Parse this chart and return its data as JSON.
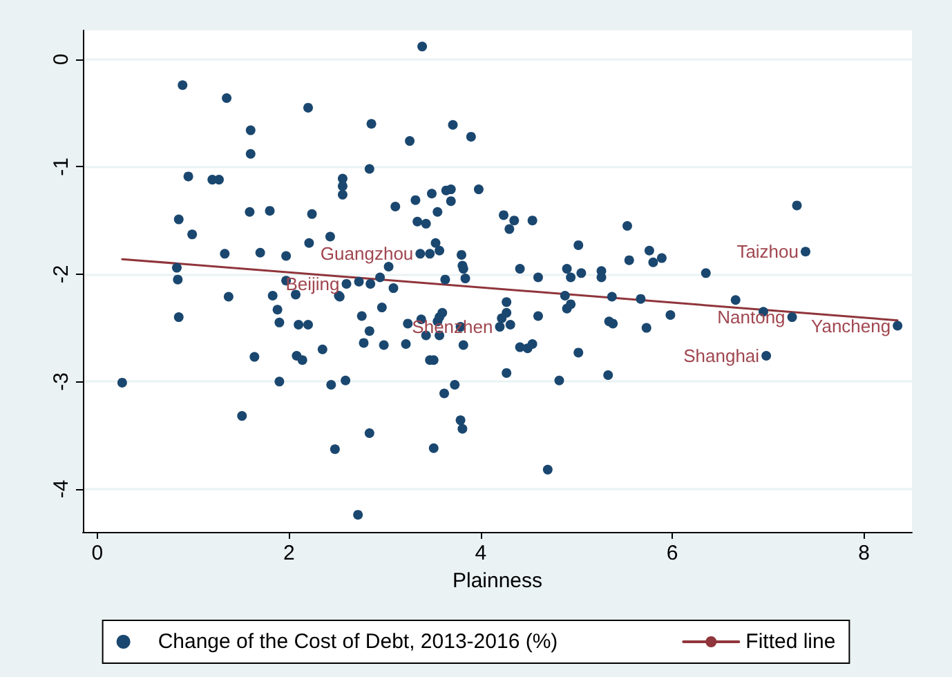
{
  "chart_data": {
    "type": "scatter",
    "xlabel": "Plainness",
    "xlim": [
      -0.15,
      8.5
    ],
    "xticks": [
      0,
      2,
      4,
      6,
      8
    ],
    "ylim": [
      -4.4,
      0.27
    ],
    "yticks": [
      0,
      -1,
      -2,
      -3,
      -4
    ],
    "grid": "y",
    "legend": "bottom",
    "series": [
      {
        "name": "Change of the Cost of Debt, 2013-2016 (%)",
        "marker": "circle",
        "color": "#1a476f",
        "x": [
          0.89,
          1.35,
          2.2,
          1.6,
          1.6,
          0.95,
          1.2,
          1.27,
          2.56,
          2.56,
          2.56,
          0.85,
          0.99,
          1.59,
          1.8,
          2.24,
          2.43,
          1.33,
          1.7,
          1.97,
          2.21,
          0.83,
          3.39,
          2.86,
          3.71,
          3.26,
          3.9,
          2.84,
          3.11,
          3.32,
          3.49,
          3.64,
          3.69,
          3.69,
          3.98,
          3.55,
          3.34,
          3.43,
          4.24,
          4.35,
          4.3,
          4.54,
          3.53,
          3.57,
          3.37,
          3.47,
          3.8,
          3.81,
          3.82,
          3.04,
          5.02,
          4.41,
          4.9,
          5.05,
          5.26,
          3.84,
          4.6,
          4.94,
          5.26,
          3.63,
          2.95,
          2.73,
          2.85,
          2.52,
          3.09,
          2.97,
          2.76,
          2.84,
          2.78,
          2.99,
          3.22,
          3.24,
          3.38,
          3.55,
          3.57,
          3.6,
          3.43,
          3.57,
          3.79,
          3.82,
          3.47,
          3.51,
          4.27,
          4.27,
          4.22,
          4.2,
          4.31,
          4.6,
          4.41,
          4.49,
          4.54,
          4.88,
          4.9,
          4.94,
          5.02,
          4.27,
          4.82,
          3.73,
          3.62,
          2.59,
          2.44,
          3.79,
          3.81,
          2.84,
          2.48,
          3.51,
          4.7,
          2.72,
          0.84,
          1.97,
          1.37,
          1.83,
          2.07,
          2.6,
          2.53,
          1.88,
          1.9,
          2.1,
          2.2,
          0.85,
          1.64,
          2.08,
          2.14,
          2.35,
          0.26,
          1.9,
          1.51,
          7.3,
          7.39,
          5.53,
          5.55,
          5.76,
          5.8,
          5.89,
          6.35,
          5.37,
          5.67,
          5.98,
          5.34,
          5.38,
          5.73,
          6.66,
          6.95,
          7.25,
          8.35,
          6.98,
          5.33
        ],
        "values": [
          -0.24,
          -0.36,
          -0.45,
          -0.66,
          -0.88,
          -1.09,
          -1.12,
          -1.12,
          -1.11,
          -1.18,
          -1.26,
          -1.49,
          -1.63,
          -1.42,
          -1.41,
          -1.44,
          -1.65,
          -1.81,
          -1.8,
          -1.83,
          -1.71,
          -1.94,
          0.12,
          -0.6,
          -0.61,
          -0.76,
          -0.72,
          -1.02,
          -1.37,
          -1.31,
          -1.25,
          -1.22,
          -1.21,
          -1.32,
          -1.21,
          -1.42,
          -1.51,
          -1.53,
          -1.45,
          -1.5,
          -1.58,
          -1.5,
          -1.71,
          -1.78,
          -1.81,
          -1.81,
          -1.82,
          -1.92,
          -1.95,
          -1.93,
          -1.73,
          -1.95,
          -1.95,
          -1.99,
          -1.97,
          -2.04,
          -2.03,
          -2.03,
          -2.03,
          -2.05,
          -2.03,
          -2.07,
          -2.09,
          -2.2,
          -2.13,
          -2.31,
          -2.39,
          -2.53,
          -2.64,
          -2.66,
          -2.65,
          -2.46,
          -2.42,
          -2.44,
          -2.4,
          -2.36,
          -2.57,
          -2.57,
          -2.49,
          -2.66,
          -2.8,
          -2.8,
          -2.26,
          -2.36,
          -2.41,
          -2.49,
          -2.47,
          -2.39,
          -2.68,
          -2.69,
          -2.65,
          -2.2,
          -2.32,
          -2.28,
          -2.73,
          -2.92,
          -2.99,
          -3.03,
          -3.11,
          -2.99,
          -3.03,
          -3.36,
          -3.44,
          -3.48,
          -3.63,
          -3.62,
          -3.82,
          -4.24,
          -2.05,
          -2.06,
          -2.21,
          -2.2,
          -2.19,
          -2.09,
          -2.21,
          -2.33,
          -2.45,
          -2.47,
          -2.47,
          -2.4,
          -2.77,
          -2.76,
          -2.8,
          -2.7,
          -3.01,
          -3.0,
          -3.32,
          -1.36,
          -1.79,
          -1.55,
          -1.87,
          -1.78,
          -1.89,
          -1.85,
          -1.99,
          -2.21,
          -2.23,
          -2.38,
          -2.44,
          -2.46,
          -2.5,
          -2.24,
          -2.35,
          -2.4,
          -2.48,
          -2.76,
          -2.94
        ]
      },
      {
        "name": "Fitted line",
        "type": "line",
        "marker": "none",
        "line_style": "solid",
        "color": "#90353b",
        "x": [
          0.26,
          8.35
        ],
        "values": [
          -1.86,
          -2.43
        ]
      }
    ],
    "annotations": [
      {
        "text": "Guangzhou",
        "x": 3.37,
        "y": -1.81
      },
      {
        "text": "Beijing",
        "x": 2.6,
        "y": -2.09
      },
      {
        "text": "Shenzhen",
        "x": 4.2,
        "y": -2.49
      },
      {
        "text": "Taizhou",
        "x": 7.39,
        "y": -1.79
      },
      {
        "text": "Nantong",
        "x": 7.25,
        "y": -2.4
      },
      {
        "text": "Yancheng",
        "x": 8.35,
        "y": -2.48
      },
      {
        "text": "Shanghai",
        "x": 6.98,
        "y": -2.76
      }
    ]
  }
}
